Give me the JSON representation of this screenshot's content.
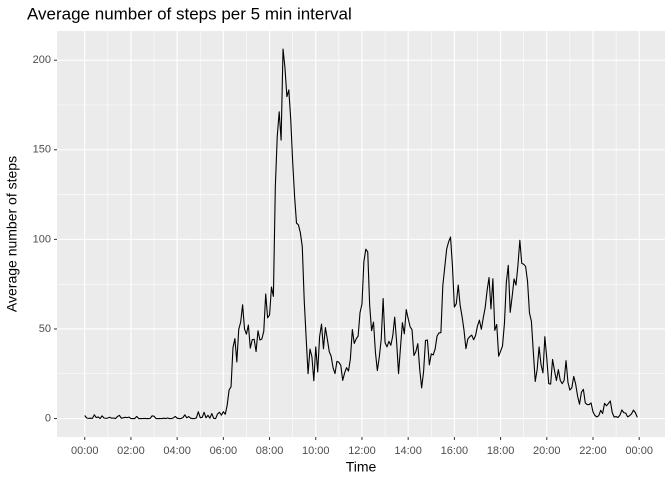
{
  "chart_data": {
    "type": "line",
    "title": "Average number of steps per 5 min interval",
    "x_label": "Time",
    "y_label": "Average number of steps",
    "color": "#000000",
    "grid": true,
    "minor_grid": true,
    "xlim": [
      -72,
      1507
    ],
    "ylim": [
      -10.3,
      216.3
    ],
    "xticks": [
      {
        "value": 0,
        "label": "00:00"
      },
      {
        "value": 120,
        "label": "02:00"
      },
      {
        "value": 240,
        "label": "04:00"
      },
      {
        "value": 360,
        "label": "06:00"
      },
      {
        "value": 480,
        "label": "08:00"
      },
      {
        "value": 600,
        "label": "10:00"
      },
      {
        "value": 720,
        "label": "12:00"
      },
      {
        "value": 840,
        "label": "14:00"
      },
      {
        "value": 960,
        "label": "16:00"
      },
      {
        "value": 1080,
        "label": "18:00"
      },
      {
        "value": 1200,
        "label": "20:00"
      },
      {
        "value": 1320,
        "label": "22:00"
      },
      {
        "value": 1440,
        "label": "00:00"
      }
    ],
    "yticks": [
      0,
      50,
      100,
      150,
      200
    ],
    "x": [
      0,
      5,
      10,
      15,
      20,
      25,
      30,
      35,
      40,
      45,
      50,
      55,
      60,
      65,
      70,
      75,
      80,
      85,
      90,
      95,
      100,
      105,
      110,
      115,
      120,
      125,
      130,
      135,
      140,
      145,
      150,
      155,
      160,
      165,
      170,
      175,
      180,
      185,
      190,
      195,
      200,
      205,
      210,
      215,
      220,
      225,
      230,
      235,
      240,
      245,
      250,
      255,
      260,
      265,
      270,
      275,
      280,
      285,
      290,
      295,
      300,
      305,
      310,
      315,
      320,
      325,
      330,
      335,
      340,
      345,
      350,
      355,
      360,
      365,
      370,
      375,
      380,
      385,
      390,
      395,
      400,
      405,
      410,
      415,
      420,
      425,
      430,
      435,
      440,
      445,
      450,
      455,
      460,
      465,
      470,
      475,
      480,
      485,
      490,
      495,
      500,
      505,
      510,
      515,
      520,
      525,
      530,
      535,
      540,
      545,
      550,
      555,
      560,
      565,
      570,
      575,
      580,
      585,
      590,
      595,
      600,
      605,
      610,
      615,
      620,
      625,
      630,
      635,
      640,
      645,
      650,
      655,
      660,
      665,
      670,
      675,
      680,
      685,
      690,
      695,
      700,
      705,
      710,
      715,
      720,
      725,
      730,
      735,
      740,
      745,
      750,
      755,
      760,
      765,
      770,
      775,
      780,
      785,
      790,
      795,
      800,
      805,
      810,
      815,
      820,
      825,
      830,
      835,
      840,
      845,
      850,
      855,
      860,
      865,
      870,
      875,
      880,
      885,
      890,
      895,
      900,
      905,
      910,
      915,
      920,
      925,
      930,
      935,
      940,
      945,
      950,
      955,
      960,
      965,
      970,
      975,
      980,
      985,
      990,
      995,
      1000,
      1005,
      1010,
      1015,
      1020,
      1025,
      1030,
      1035,
      1040,
      1045,
      1050,
      1055,
      1060,
      1065,
      1070,
      1075,
      1080,
      1085,
      1090,
      1095,
      1100,
      1105,
      1110,
      1115,
      1120,
      1125,
      1130,
      1135,
      1140,
      1145,
      1150,
      1155,
      1160,
      1165,
      1170,
      1175,
      1180,
      1185,
      1190,
      1195,
      1200,
      1205,
      1210,
      1215,
      1220,
      1225,
      1230,
      1235,
      1240,
      1245,
      1250,
      1255,
      1260,
      1265,
      1270,
      1275,
      1280,
      1285,
      1290,
      1295,
      1300,
      1305,
      1310,
      1315,
      1320,
      1325,
      1330,
      1335,
      1340,
      1345,
      1350,
      1355,
      1360,
      1365,
      1370,
      1375,
      1380,
      1385,
      1390,
      1395,
      1400,
      1405,
      1410,
      1415,
      1420,
      1425,
      1430,
      1435
    ],
    "values": [
      1.7,
      0.3,
      0.1,
      0.2,
      0.1,
      2.1,
      0.5,
      0.9,
      0,
      1.5,
      0.3,
      0.1,
      0.3,
      0.7,
      0.2,
      0.3,
      0,
      1.1,
      1.8,
      0.2,
      0.4,
      0.7,
      0.5,
      0.8,
      0,
      0,
      0,
      1.2,
      0,
      0,
      0,
      0.1,
      0,
      0,
      0.1,
      1.5,
      1.3,
      0,
      0,
      0,
      0,
      0.2,
      0,
      0.3,
      0,
      0,
      0.3,
      1.2,
      0.2,
      0,
      0,
      0.5,
      2.1,
      0.4,
      1.1,
      0.2,
      0,
      0,
      0.4,
      3.8,
      0.5,
      0.6,
      3.5,
      0.4,
      1.8,
      0.2,
      2.8,
      0.1,
      0,
      2.6,
      3.5,
      1.9,
      3.8,
      2.4,
      7.5,
      16.0,
      17.7,
      39.5,
      44.6,
      31.6,
      49.8,
      53.8,
      63.5,
      50.0,
      47.1,
      52.2,
      39.3,
      44.0,
      44.2,
      37.4,
      49.0,
      43.8,
      44.4,
      48.7,
      69.5,
      56.2,
      57.8,
      73.4,
      68.2,
      129.4,
      157.5,
      171.2,
      155.4,
      206.2,
      195.9,
      179.6,
      183.4,
      167.0,
      143.5,
      124.0,
      109.1,
      108.1,
      103.7,
      95.9,
      66.2,
      45.2,
      25.0,
      38.8,
      34.5,
      21.1,
      40.0,
      26.0,
      45.7,
      52.7,
      38.9,
      50.8,
      44.4,
      37.4,
      34.7,
      28.3,
      25.1,
      31.9,
      31.4,
      29.7,
      21.3,
      25.5,
      28.4,
      26.5,
      33.4,
      49.7,
      41.9,
      44.5,
      46.0,
      59.2,
      63.9,
      87.6,
      94.5,
      93.0,
      63.2,
      49.0,
      53.8,
      36.8,
      26.8,
      34.3,
      44.3,
      67.0,
      42.3,
      40.0,
      43.1,
      40.9,
      46.2,
      56.6,
      42.8,
      25.1,
      39.5,
      53.5,
      47.3,
      60.8,
      55.8,
      51.2,
      49.6,
      35.2,
      37.4,
      41.8,
      27.5,
      17.1,
      26.1,
      43.6,
      43.8,
      30.0,
      36.1,
      35.5,
      38.8,
      46.0,
      47.8,
      48.0,
      74.2,
      84.5,
      94.6,
      98.6,
      101.3,
      85.1,
      62.2,
      64.1,
      74.5,
      63.2,
      56.9,
      49.3,
      39.0,
      44.4,
      45.7,
      46.6,
      44.0,
      46.3,
      51.7,
      54.9,
      49.8,
      56.2,
      61.9,
      71.5,
      78.7,
      61.2,
      78.0,
      49.2,
      52.5,
      34.8,
      37.6,
      40.5,
      53.0,
      76.1,
      85.5,
      59.3,
      68.0,
      77.9,
      74.5,
      85.3,
      99.5,
      86.6,
      86.1,
      84.9,
      76.6,
      59.0,
      54.3,
      37.2,
      20.7,
      27.4,
      40.0,
      30.2,
      25.5,
      45.7,
      33.5,
      19.5,
      19.2,
      33.0,
      26.8,
      21.2,
      27.3,
      21.3,
      19.5,
      21.3,
      32.3,
      20.2,
      15.9,
      17.2,
      23.5,
      19.2,
      12.5,
      8.0,
      14.7,
      16.3,
      8.7,
      7.8,
      7.8,
      8.7,
      3.7,
      1.7,
      0.9,
      1.6,
      4.6,
      2.8,
      8.5,
      7.1,
      8.4,
      9.8,
      3.3,
      0.8,
      1.1,
      0.6,
      1.9,
      4.8,
      3.3,
      3.0,
      0.9,
      1.6,
      2.6,
      4.7,
      3.3,
      0.7
    ]
  }
}
